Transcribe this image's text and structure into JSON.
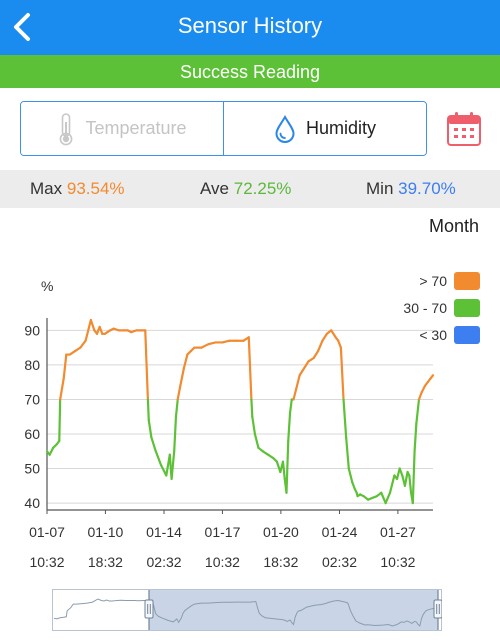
{
  "header": {
    "title": "Sensor History",
    "back_icon": "chevron-left-icon"
  },
  "status": {
    "text": "Success Reading"
  },
  "tabs": [
    {
      "label": "Temperature",
      "icon": "thermometer-icon",
      "active": false
    },
    {
      "label": "Humidity",
      "icon": "water-drop-icon",
      "active": true
    }
  ],
  "calendar": {
    "icon": "calendar-icon"
  },
  "stats": {
    "max_label": "Max",
    "max_value": "93.54%",
    "ave_label": "Ave",
    "ave_value": "72.25%",
    "min_label": "Min",
    "min_value": "39.70%"
  },
  "period": {
    "label": "Month"
  },
  "colors": {
    "high": "#f28a30",
    "mid": "#5cc136",
    "low": "#3d7ef0",
    "brand": "#1a8cf0"
  },
  "chart_data": {
    "type": "line",
    "title": "",
    "ylabel": "%",
    "ylim": [
      38,
      93
    ],
    "yticks": [
      40,
      50,
      60,
      70,
      80,
      90
    ],
    "xlim": [
      0,
      22
    ],
    "xticks": [
      {
        "x": 0,
        "line1": "01-07",
        "line2": "10:32"
      },
      {
        "x": 3.33,
        "line1": "01-10",
        "line2": "18:32"
      },
      {
        "x": 6.67,
        "line1": "01-14",
        "line2": "02:32"
      },
      {
        "x": 10,
        "line1": "01-17",
        "line2": "10:32"
      },
      {
        "x": 13.33,
        "line1": "01-20",
        "line2": "18:32"
      },
      {
        "x": 16.67,
        "line1": "01-24",
        "line2": "02:32"
      },
      {
        "x": 20,
        "line1": "01-27",
        "line2": "10:32"
      }
    ],
    "grid": true,
    "thresholds": {
      "low": 30,
      "high": 70
    },
    "legend": [
      {
        "label": "> 70",
        "color": "#f28a30"
      },
      {
        "label": "30 - 70",
        "color": "#5cc136"
      },
      {
        "label": "< 30",
        "color": "#3d7ef0"
      }
    ],
    "legend_position": "top-right",
    "x": [
      0,
      0.15,
      0.35,
      0.55,
      0.7,
      0.75,
      0.95,
      1.1,
      1.3,
      1.6,
      1.9,
      2.2,
      2.5,
      2.7,
      2.85,
      3.0,
      3.15,
      3.3,
      3.45,
      3.6,
      3.8,
      4.1,
      4.4,
      4.6,
      4.8,
      5.1,
      5.4,
      5.6,
      5.75,
      5.8,
      5.95,
      6.2,
      6.5,
      6.8,
      7.0,
      7.1,
      7.25,
      7.35,
      7.45,
      7.6,
      7.8,
      8.0,
      8.2,
      8.4,
      8.8,
      9.2,
      9.6,
      10.0,
      10.4,
      10.8,
      11.2,
      11.5,
      11.65,
      11.7,
      11.85,
      12.05,
      12.3,
      12.6,
      12.9,
      13.1,
      13.3,
      13.45,
      13.55,
      13.65,
      13.75,
      13.85,
      13.95,
      14.05,
      14.2,
      14.4,
      14.65,
      14.9,
      15.2,
      15.45,
      15.7,
      15.95,
      16.2,
      16.45,
      16.6,
      16.75,
      16.9,
      17.05,
      17.2,
      17.4,
      17.55,
      17.65,
      17.7,
      17.85,
      18.05,
      18.3,
      18.55,
      18.8,
      19.05,
      19.3,
      19.55,
      19.8,
      19.95,
      20.1,
      20.25,
      20.4,
      20.55,
      20.65,
      20.75,
      20.85,
      20.95,
      21.05,
      21.2,
      21.35,
      21.55,
      21.7,
      21.85,
      22.0
    ],
    "y": [
      55,
      54,
      56,
      57,
      58,
      70,
      76,
      83,
      83,
      84,
      85,
      87,
      93,
      90,
      89,
      91,
      89,
      89,
      89.5,
      90,
      90.5,
      90,
      90,
      90,
      89.5,
      90,
      90,
      90,
      70,
      64,
      59,
      55,
      51,
      48,
      54,
      47,
      55,
      65,
      70,
      74,
      79,
      83,
      84,
      85,
      85,
      86,
      86.5,
      86.5,
      87,
      87,
      87,
      88,
      70,
      65,
      60,
      56,
      55,
      54,
      53,
      52,
      49,
      52,
      47,
      43,
      58,
      66,
      70,
      70,
      73,
      77,
      79,
      81,
      82,
      84,
      87,
      89,
      90,
      88,
      87,
      85,
      70,
      59,
      50,
      46,
      44,
      43,
      42,
      42.5,
      42,
      41,
      41.5,
      42,
      43,
      40,
      43,
      48,
      47,
      50,
      48,
      45,
      49,
      48,
      43,
      40,
      55,
      63,
      70,
      72,
      74,
      75,
      76,
      77
    ]
  }
}
